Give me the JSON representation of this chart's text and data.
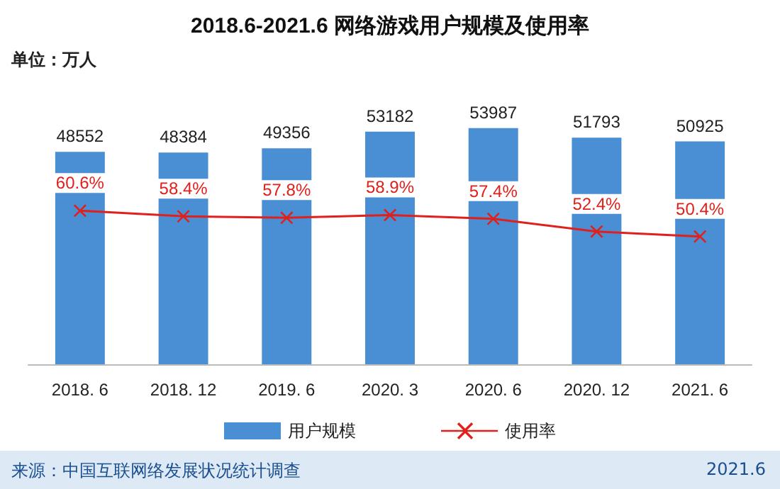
{
  "chart_data": {
    "type": "bar",
    "title": "2018.6-2021.6 网络游戏用户规模及使用率",
    "annotations": [
      "单位：万人",
      "来源：中国互联网络发展状况统计调查",
      "2021.6"
    ],
    "categories": [
      "2018. 6",
      "2018. 12",
      "2019. 6",
      "2020. 3",
      "2020. 6",
      "2020. 12",
      "2021. 6"
    ],
    "series": [
      {
        "name": "用户规模",
        "color": "#4a8fd4",
        "values": [
          48552,
          48384,
          49356,
          53182,
          53987,
          51793,
          50925
        ]
      },
      {
        "name": "使用率",
        "type": "line",
        "axis": "y2",
        "color": "#e0201c",
        "marker": "cross",
        "line_style": "solid",
        "value_labels": [
          "60.6%",
          "58.4%",
          "57.8%",
          "58.9%",
          "57.4%",
          "52.4%",
          "50.4%"
        ],
        "values": [
          60.6,
          58.4,
          57.8,
          58.9,
          57.4,
          52.4,
          50.4
        ]
      }
    ],
    "data_labels": true,
    "legend": "bottom",
    "tick_labels": "x"
  }
}
